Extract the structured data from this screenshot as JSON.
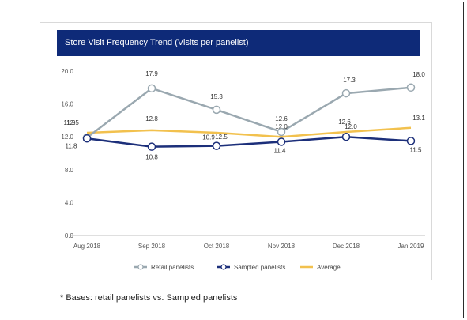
{
  "footnote": "* Bases: retail panelists vs. Sampled panelists",
  "chart_data": {
    "type": "line",
    "title": "Store Visit Frequency Trend (Visits per panelist)",
    "categories": [
      "Aug 2018",
      "Sep 2018",
      "Oct 2018",
      "Nov 2018",
      "Dec 2018",
      "Jan 2019"
    ],
    "ylim": [
      0,
      20
    ],
    "yticks": [
      0,
      4,
      8,
      12,
      16,
      20
    ],
    "ytick_labels": [
      "0.0",
      "4.0",
      "8.0",
      "12.0",
      "16.0",
      "20.0"
    ],
    "grid": false,
    "legend": "bottom",
    "series": [
      {
        "name": "Retail panelists",
        "color": "#9aa8b0",
        "marker": "circle",
        "values": [
          11.9,
          17.9,
          15.3,
          12.6,
          17.3,
          18.0
        ],
        "labels": [
          "11.9",
          "17.9",
          "15.3",
          "12.6",
          "17.3",
          "18.0"
        ]
      },
      {
        "name": "Sampled panelists",
        "color": "#1c2f7a",
        "marker": "circle",
        "values": [
          11.8,
          10.8,
          10.9,
          11.4,
          12.0,
          11.5
        ],
        "labels": [
          "11.8",
          "10.8",
          "10.9",
          "11.4",
          "12.0",
          "11.5"
        ]
      },
      {
        "name": "Average",
        "color": "#f2c14e",
        "marker": "none",
        "values": [
          12.5,
          12.8,
          12.5,
          12.0,
          12.6,
          13.1
        ],
        "labels": [
          "12.5",
          "12.8",
          "12.5",
          "12.0",
          "12.6",
          "13.1"
        ]
      }
    ]
  }
}
